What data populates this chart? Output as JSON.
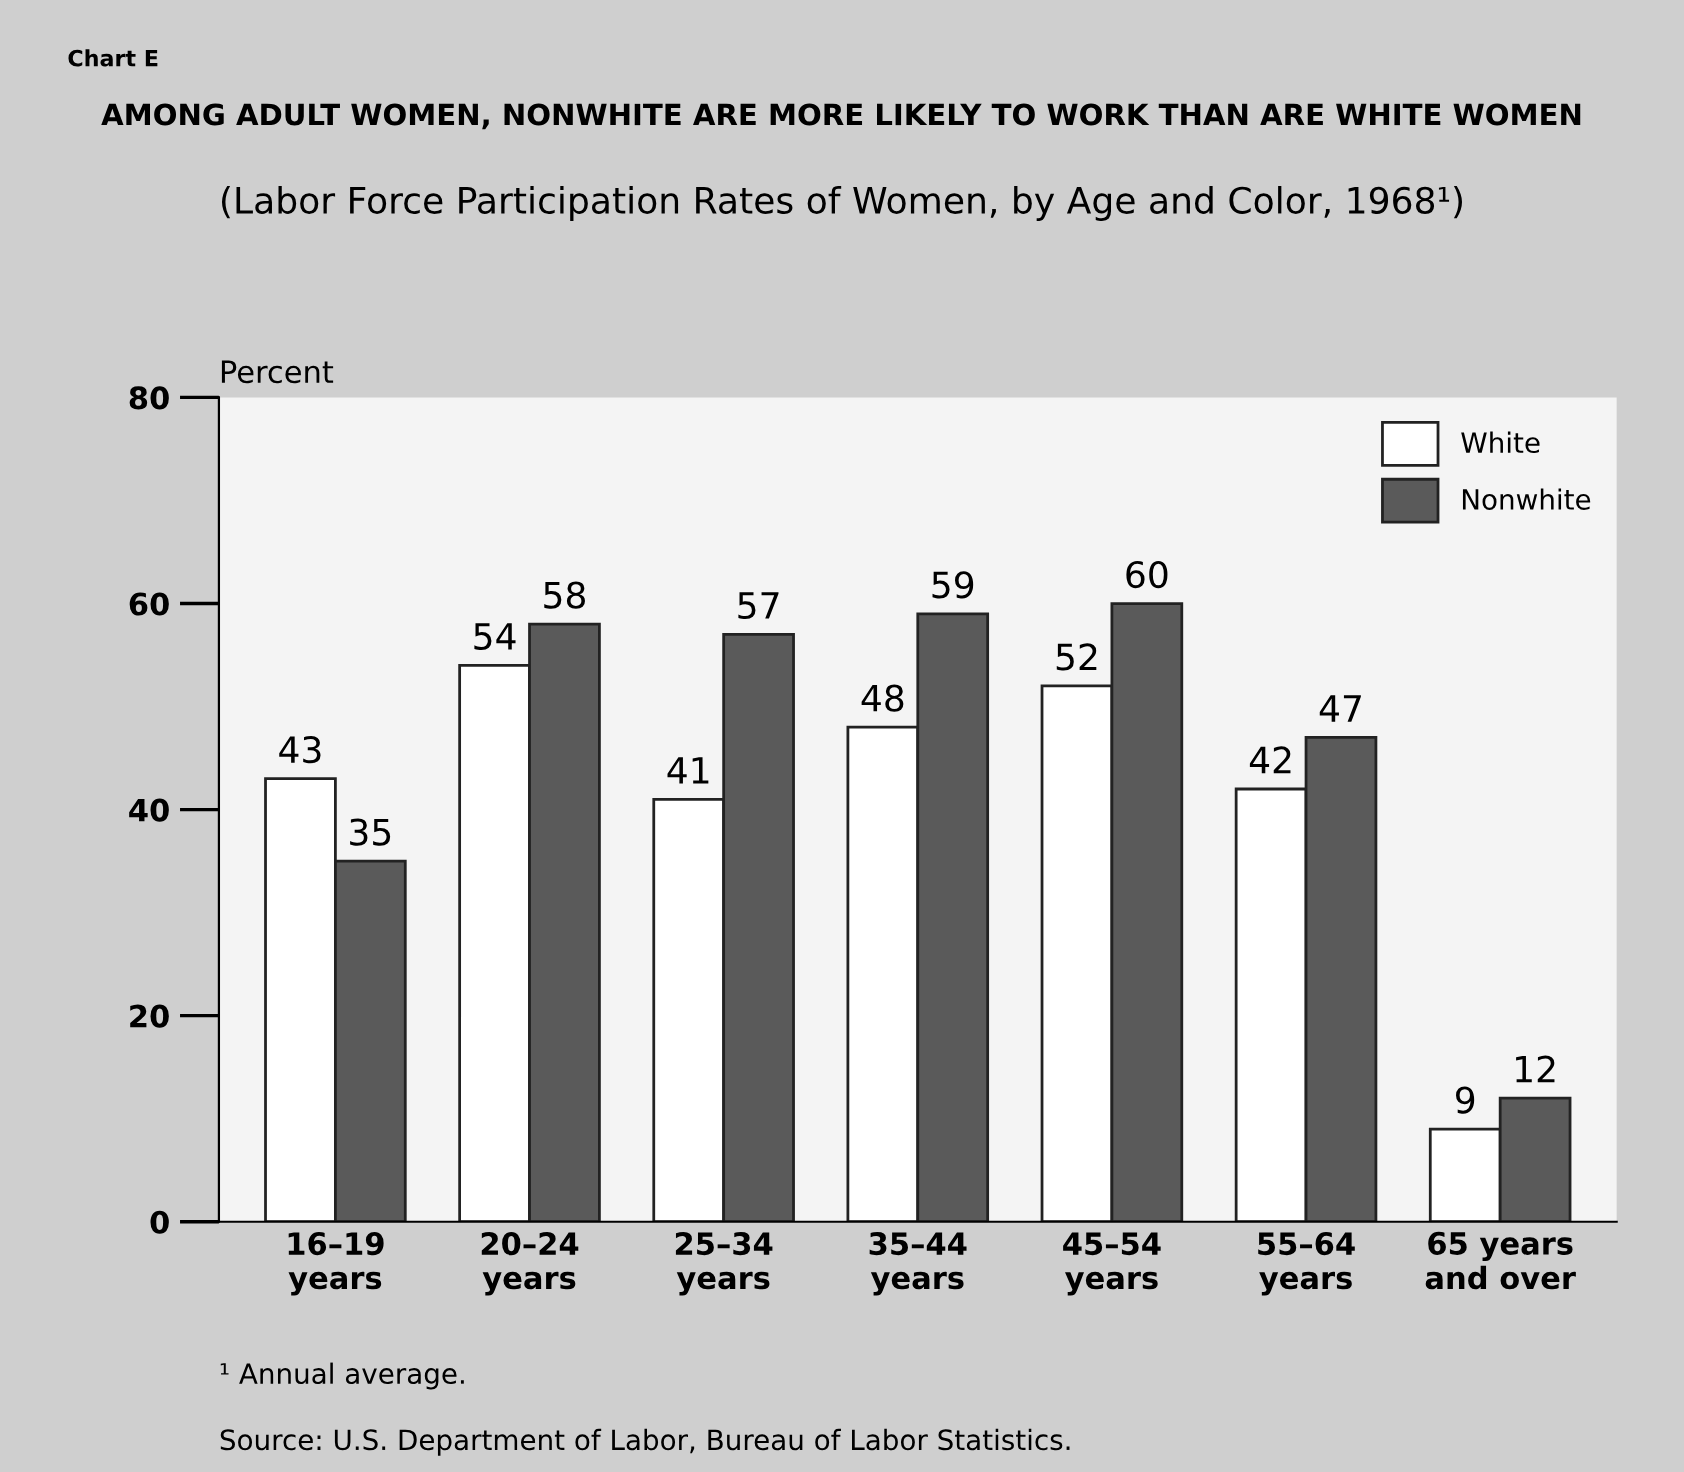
{
  "chart_data": {
    "type": "bar",
    "title": "AMONG ADULT WOMEN, NONWHITE ARE MORE LIKELY TO WORK THAN ARE WHITE WOMEN",
    "subtitle": "(Labor Force Participation Rates of Women, by Age and Color, 1968¹)",
    "ylabel": "Percent",
    "categories": [
      "16–19\nyears",
      "20–24\nyears",
      "25–34\nyears",
      "35–44\nyears",
      "45–54\nyears",
      "55–64\nyears",
      "65 years\nand over"
    ],
    "series": [
      {
        "name": "White",
        "color": "#ffffff",
        "values": [
          43,
          54,
          41,
          48,
          52,
          42,
          9
        ]
      },
      {
        "name": "Nonwhite",
        "color": "#5a5a5a",
        "values": [
          35,
          58,
          57,
          59,
          60,
          47,
          12
        ]
      }
    ],
    "ylim": [
      0,
      80
    ],
    "yticks": [
      0,
      20,
      40,
      60,
      80
    ],
    "data_labels": true,
    "grid": false,
    "legend": "top right",
    "annotations": [
      "Chart E",
      "¹ Annual average.",
      "Source: U.S. Department of Labor, Bureau of Labor Statistics."
    ]
  }
}
